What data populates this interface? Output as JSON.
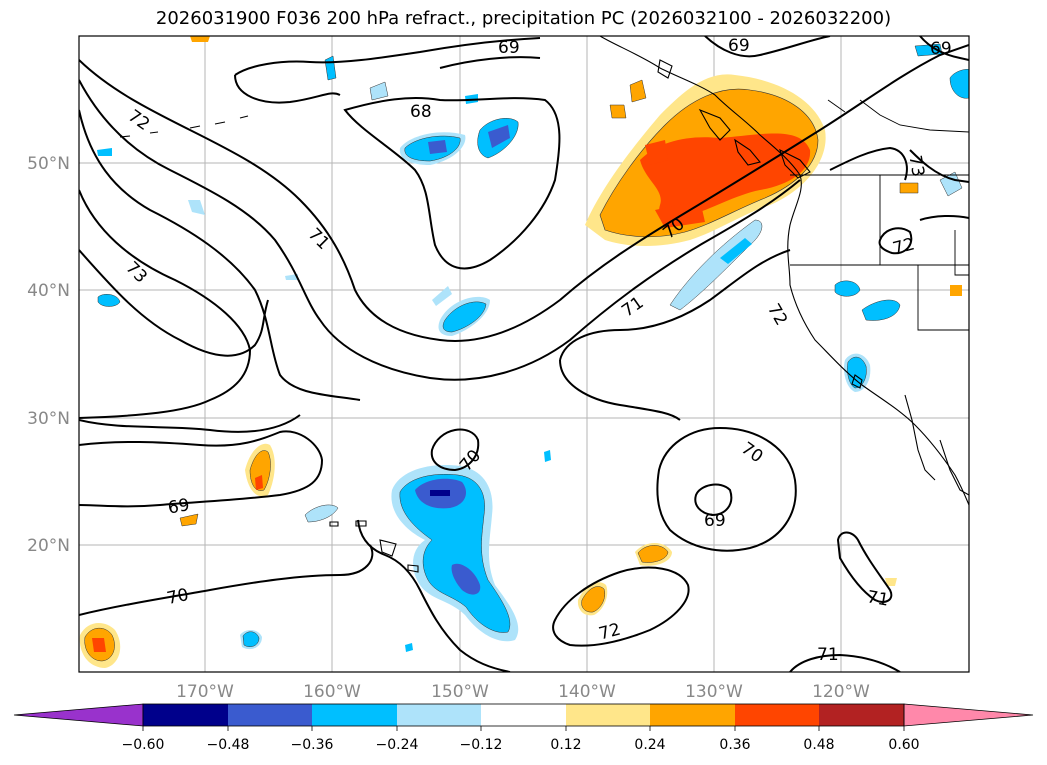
{
  "title": "2026031900 F036 200 hPa refract., precipitation PC (2026032100 - 2026032200)",
  "lat_labels": [
    "50°N",
    "40°N",
    "30°N",
    "20°N"
  ],
  "lon_labels": [
    "170°W",
    "160°W",
    "150°W",
    "140°W",
    "130°W",
    "120°W"
  ],
  "contour_labels": [
    "69",
    "69",
    "69",
    "68",
    "72",
    "71",
    "73",
    "70",
    "71",
    "72",
    "73",
    "72",
    "70",
    "69",
    "70",
    "71",
    "72",
    "71",
    "69"
  ],
  "colorbar": {
    "ticks": [
      "−0.60",
      "−0.48",
      "−0.36",
      "−0.24",
      "−0.12",
      "0.12",
      "0.24",
      "0.36",
      "0.48",
      "0.60"
    ],
    "colors": [
      "#9932cc",
      "#00008b",
      "#3a5bcf",
      "#00bfff",
      "#aee3fa",
      "#ffffff",
      "#ffe68a",
      "#ffa500",
      "#ff4500",
      "#b22222",
      "#ff88aa"
    ]
  }
}
